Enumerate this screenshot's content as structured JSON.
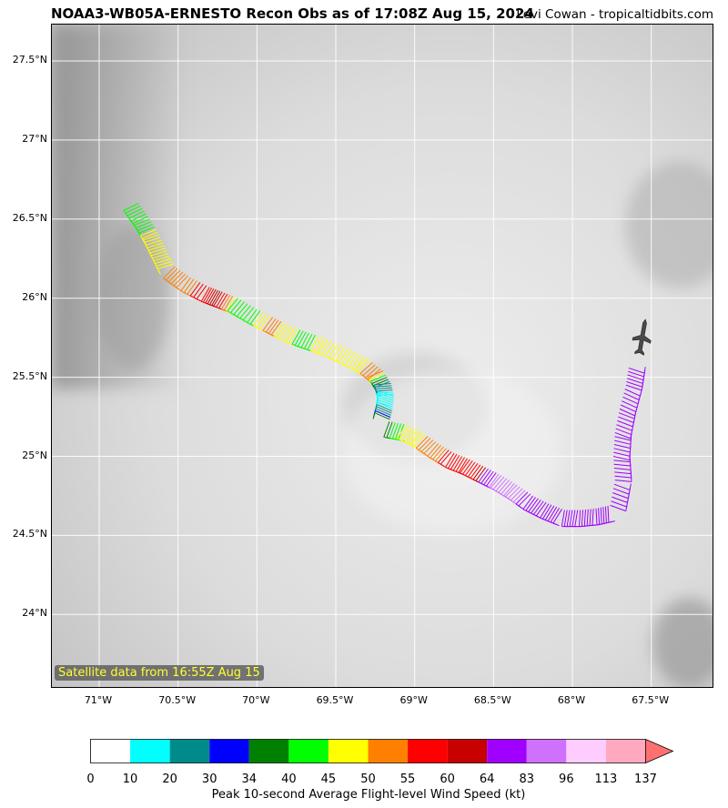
{
  "header": {
    "title": "NOAA3-WB05A-ERNESTO Recon Obs as of 17:08Z Aug 15, 2024",
    "credit": "Levi Cowan - tropicaltidbits.com"
  },
  "map": {
    "lon_range": [
      -71.3,
      -67.1
    ],
    "lat_range": [
      23.53,
      27.73
    ],
    "lat_ticks": [
      {
        "value": 27.5,
        "label": "27.5°N"
      },
      {
        "value": 27.0,
        "label": "27°N"
      },
      {
        "value": 26.5,
        "label": "26.5°N"
      },
      {
        "value": 26.0,
        "label": "26°N"
      },
      {
        "value": 25.5,
        "label": "25.5°N"
      },
      {
        "value": 25.0,
        "label": "25°N"
      },
      {
        "value": 24.5,
        "label": "24.5°N"
      },
      {
        "value": 24.0,
        "label": "24°N"
      }
    ],
    "lon_ticks": [
      {
        "value": -71.0,
        "label": "71°W"
      },
      {
        "value": -70.5,
        "label": "70.5°W"
      },
      {
        "value": -70.0,
        "label": "70°W"
      },
      {
        "value": -69.5,
        "label": "69.5°W"
      },
      {
        "value": -69.0,
        "label": "69°W"
      },
      {
        "value": -68.5,
        "label": "68.5°W"
      },
      {
        "value": -68.0,
        "label": "68°W"
      },
      {
        "value": -67.5,
        "label": "67.5°W"
      }
    ],
    "satellite_label": "Satellite data from 16:55Z Aug 15",
    "track": [
      {
        "lon": -70.75,
        "lat": 26.6,
        "kt": 43
      },
      {
        "lon": -70.68,
        "lat": 26.5,
        "kt": 42
      },
      {
        "lon": -70.62,
        "lat": 26.4,
        "kt": 47
      },
      {
        "lon": -70.57,
        "lat": 26.3,
        "kt": 48
      },
      {
        "lon": -70.52,
        "lat": 26.2,
        "kt": 50
      },
      {
        "lon": -70.42,
        "lat": 26.13,
        "kt": 52
      },
      {
        "lon": -70.3,
        "lat": 26.07,
        "kt": 58
      },
      {
        "lon": -70.22,
        "lat": 26.04,
        "kt": 62
      },
      {
        "lon": -70.12,
        "lat": 26.0,
        "kt": 44
      },
      {
        "lon": -70.0,
        "lat": 25.93,
        "kt": 42
      },
      {
        "lon": -69.88,
        "lat": 25.87,
        "kt": 52
      },
      {
        "lon": -69.78,
        "lat": 25.82,
        "kt": 47
      },
      {
        "lon": -69.67,
        "lat": 25.78,
        "kt": 42
      },
      {
        "lon": -69.55,
        "lat": 25.74,
        "kt": 48
      },
      {
        "lon": -69.42,
        "lat": 25.68,
        "kt": 45
      },
      {
        "lon": -69.3,
        "lat": 25.62,
        "kt": 49
      },
      {
        "lon": -69.2,
        "lat": 25.54,
        "kt": 52
      },
      {
        "lon": -69.15,
        "lat": 25.46,
        "kt": 25
      },
      {
        "lon": -69.13,
        "lat": 25.38,
        "kt": 15
      },
      {
        "lon": -69.14,
        "lat": 25.3,
        "kt": 18
      },
      {
        "lon": -69.16,
        "lat": 25.22,
        "kt": 38
      },
      {
        "lon": -69.05,
        "lat": 25.2,
        "kt": 46
      },
      {
        "lon": -68.95,
        "lat": 25.15,
        "kt": 49
      },
      {
        "lon": -68.85,
        "lat": 25.08,
        "kt": 52
      },
      {
        "lon": -68.75,
        "lat": 25.02,
        "kt": 57
      },
      {
        "lon": -68.65,
        "lat": 24.98,
        "kt": 55
      },
      {
        "lon": -68.55,
        "lat": 24.93,
        "kt": 62
      },
      {
        "lon": -68.45,
        "lat": 24.88,
        "kt": 90
      },
      {
        "lon": -68.35,
        "lat": 24.82,
        "kt": 88
      },
      {
        "lon": -68.25,
        "lat": 24.75,
        "kt": 80
      },
      {
        "lon": -68.15,
        "lat": 24.7,
        "kt": 76
      },
      {
        "lon": -68.05,
        "lat": 24.66,
        "kt": 72
      },
      {
        "lon": -67.95,
        "lat": 24.66,
        "kt": 74
      },
      {
        "lon": -67.85,
        "lat": 24.67,
        "kt": 72
      },
      {
        "lon": -67.76,
        "lat": 24.69,
        "kt": 70
      },
      {
        "lon": -67.73,
        "lat": 24.85,
        "kt": 72
      },
      {
        "lon": -67.74,
        "lat": 25.0,
        "kt": 73
      },
      {
        "lon": -67.73,
        "lat": 25.15,
        "kt": 72
      },
      {
        "lon": -67.7,
        "lat": 25.3,
        "kt": 70
      },
      {
        "lon": -67.66,
        "lat": 25.45,
        "kt": 70
      },
      {
        "lon": -67.64,
        "lat": 25.58,
        "kt": 72
      }
    ]
  },
  "colorbar": {
    "title": "Peak 10-second Average Flight-level Wind Speed (kt)",
    "ticks": [
      "0",
      "10",
      "20",
      "30",
      "34",
      "40",
      "45",
      "50",
      "55",
      "60",
      "64",
      "83",
      "96",
      "113",
      "137"
    ],
    "bounds": [
      0,
      10,
      20,
      30,
      34,
      40,
      45,
      50,
      55,
      60,
      64,
      83,
      96,
      113,
      137
    ],
    "colors": [
      "#ffffff",
      "#00ffff",
      "#008b8b",
      "#0000ff",
      "#008000",
      "#00ff00",
      "#ffff00",
      "#ff7f00",
      "#ff0000",
      "#c80000",
      "#a000ff",
      "#d070ff",
      "#ffccff",
      "#ffa8c0"
    ],
    "extend_color": "#ff7070"
  }
}
